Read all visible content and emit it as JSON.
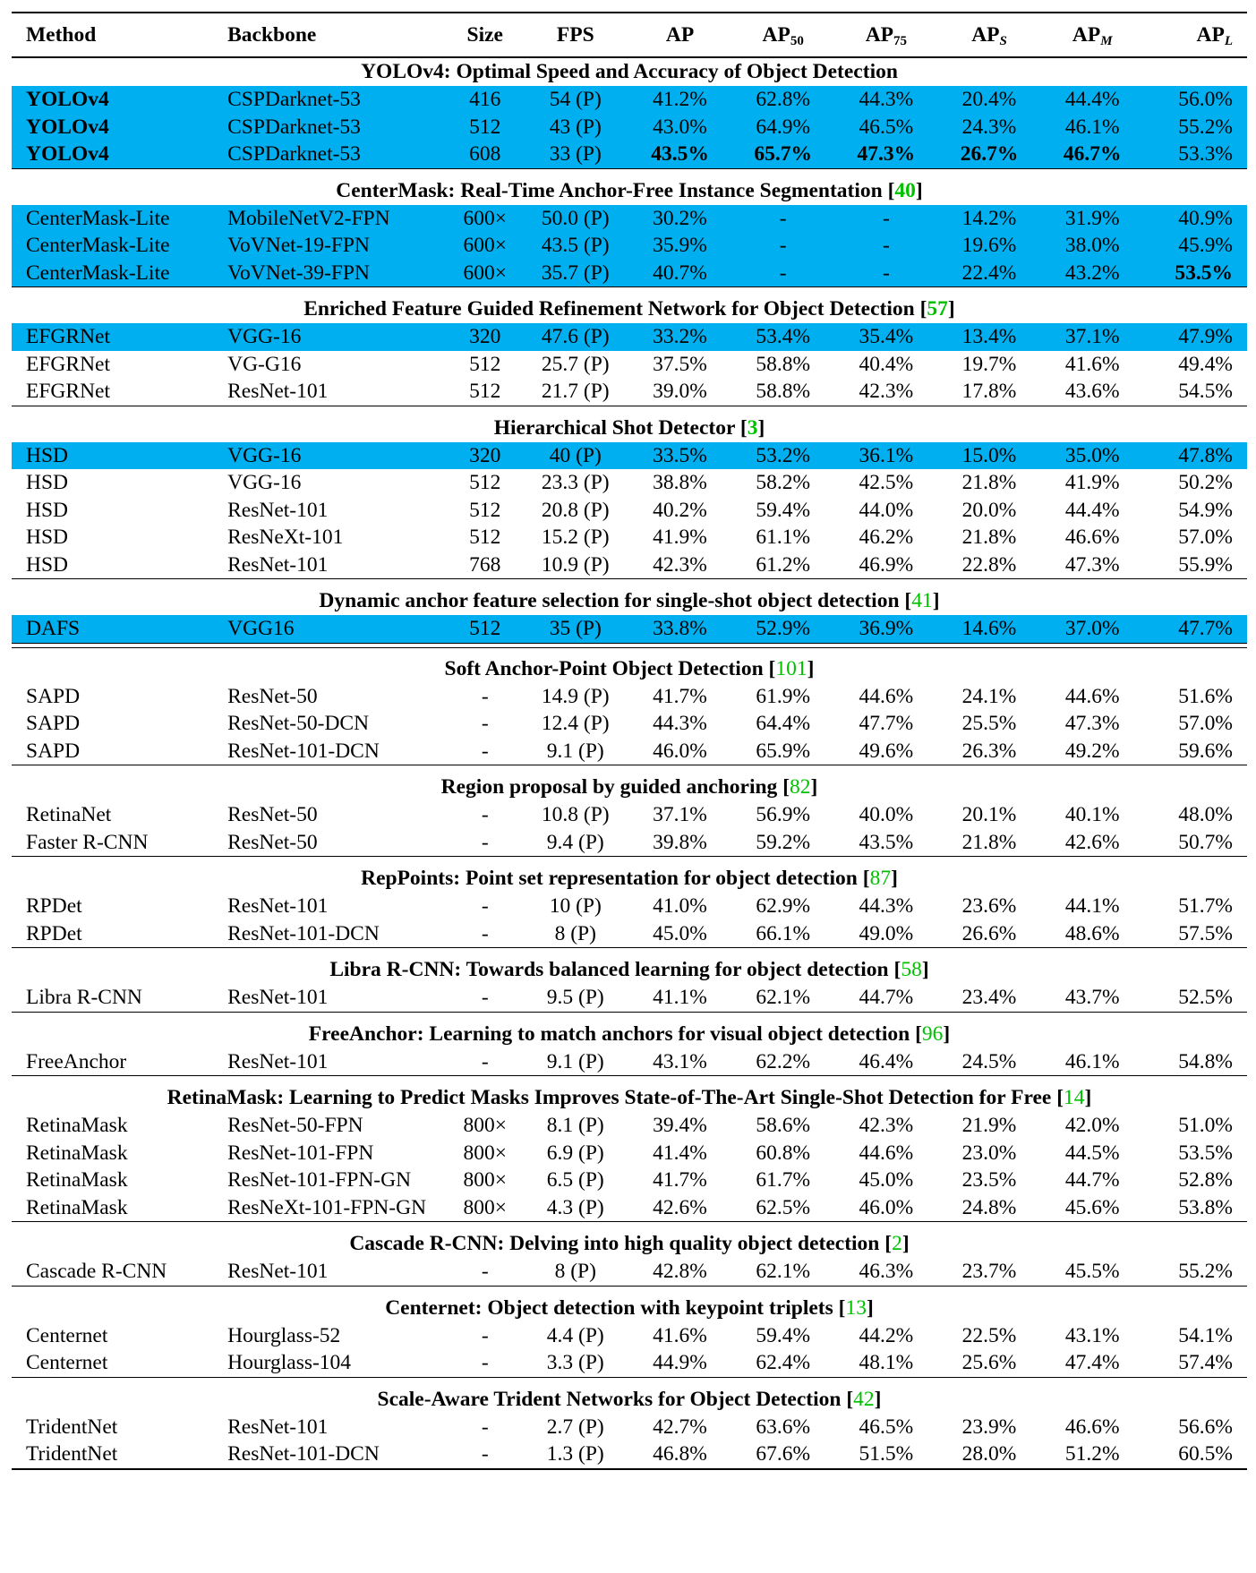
{
  "headers": [
    "Method",
    "Backbone",
    "Size",
    "FPS",
    "AP",
    "AP50",
    "AP75",
    "APS",
    "APM",
    "APL"
  ],
  "header_parts": [
    {
      "base": "Method"
    },
    {
      "base": "Backbone"
    },
    {
      "base": "Size"
    },
    {
      "base": "FPS"
    },
    {
      "base": "AP"
    },
    {
      "base": "AP",
      "sub": "50"
    },
    {
      "base": "AP",
      "sub": "75"
    },
    {
      "base": "AP",
      "sub": "S"
    },
    {
      "base": "AP",
      "sub": "M"
    },
    {
      "base": "AP",
      "sub": "L"
    }
  ],
  "sections": [
    {
      "title": "YOLOv4: Optimal Speed and Accuracy of Object Detection",
      "ref": "",
      "rows": [
        {
          "hl": true,
          "bold_method": true,
          "cells": [
            "YOLOv4",
            "CSPDarknet-53",
            "416",
            "54 (P)",
            "41.2%",
            "62.8%",
            "44.3%",
            "20.4%",
            "44.4%",
            "56.0%"
          ],
          "bold": []
        },
        {
          "hl": true,
          "bold_method": true,
          "cells": [
            "YOLOv4",
            "CSPDarknet-53",
            "512",
            "43 (P)",
            "43.0%",
            "64.9%",
            "46.5%",
            "24.3%",
            "46.1%",
            "55.2%"
          ],
          "bold": []
        },
        {
          "hl": true,
          "bold_method": true,
          "cells": [
            "YOLOv4",
            "CSPDarknet-53",
            "608",
            "33 (P)",
            "43.5%",
            "65.7%",
            "47.3%",
            "26.7%",
            "46.7%",
            "53.3%"
          ],
          "bold": [
            4,
            5,
            6,
            7,
            8
          ]
        }
      ]
    },
    {
      "title": "CenterMask: Real-Time Anchor-Free Instance Segmentation",
      "ref": "40",
      "rows": [
        {
          "hl": true,
          "cells": [
            "CenterMask-Lite",
            "MobileNetV2-FPN",
            "600×",
            "50.0 (P)",
            "30.2%",
            "-",
            "-",
            "14.2%",
            "31.9%",
            "40.9%"
          ],
          "bold": []
        },
        {
          "hl": true,
          "cells": [
            "CenterMask-Lite",
            "VoVNet-19-FPN",
            "600×",
            "43.5 (P)",
            "35.9%",
            "-",
            "-",
            "19.6%",
            "38.0%",
            "45.9%"
          ],
          "bold": []
        },
        {
          "hl": true,
          "cells": [
            "CenterMask-Lite",
            "VoVNet-39-FPN",
            "600×",
            "35.7 (P)",
            "40.7%",
            "-",
            "-",
            "22.4%",
            "43.2%",
            "53.5%"
          ],
          "bold": [
            9
          ]
        }
      ]
    },
    {
      "title": "Enriched Feature Guided Refinement Network for Object Detection",
      "ref": "57",
      "rows": [
        {
          "hl": true,
          "cells": [
            "EFGRNet",
            "VGG-16",
            "320",
            "47.6 (P)",
            "33.2%",
            "53.4%",
            "35.4%",
            "13.4%",
            "37.1%",
            "47.9%"
          ],
          "bold": []
        },
        {
          "hl": false,
          "cells": [
            "EFGRNet",
            "VG-G16",
            "512",
            "25.7 (P)",
            "37.5%",
            "58.8%",
            "40.4%",
            "19.7%",
            "41.6%",
            "49.4%"
          ],
          "bold": []
        },
        {
          "hl": false,
          "cells": [
            "EFGRNet",
            "ResNet-101",
            "512",
            "21.7 (P)",
            "39.0%",
            "58.8%",
            "42.3%",
            "17.8%",
            "43.6%",
            "54.5%"
          ],
          "bold": []
        }
      ]
    },
    {
      "title": "Hierarchical Shot Detector",
      "ref": "3",
      "rows": [
        {
          "hl": true,
          "cells": [
            "HSD",
            "VGG-16",
            "320",
            "40 (P)",
            "33.5%",
            "53.2%",
            "36.1%",
            "15.0%",
            "35.0%",
            "47.8%"
          ],
          "bold": []
        },
        {
          "hl": false,
          "cells": [
            "HSD",
            "VGG-16",
            "512",
            "23.3 (P)",
            "38.8%",
            "58.2%",
            "42.5%",
            "21.8%",
            "41.9%",
            "50.2%"
          ],
          "bold": []
        },
        {
          "hl": false,
          "cells": [
            "HSD",
            "ResNet-101",
            "512",
            "20.8 (P)",
            "40.2%",
            "59.4%",
            "44.0%",
            "20.0%",
            "44.4%",
            "54.9%"
          ],
          "bold": []
        },
        {
          "hl": false,
          "cells": [
            "HSD",
            "ResNeXt-101",
            "512",
            "15.2 (P)",
            "41.9%",
            "61.1%",
            "46.2%",
            "21.8%",
            "46.6%",
            "57.0%"
          ],
          "bold": []
        },
        {
          "hl": false,
          "cells": [
            "HSD",
            "ResNet-101",
            "768",
            "10.9 (P)",
            "42.3%",
            "61.2%",
            "46.9%",
            "22.8%",
            "47.3%",
            "55.9%"
          ],
          "bold": []
        }
      ]
    },
    {
      "title": "Dynamic anchor feature selection for single-shot object detection",
      "ref": "41",
      "double_after": true,
      "rows": [
        {
          "hl": true,
          "cells": [
            "DAFS",
            "VGG16",
            "512",
            "35 (P)",
            "33.8%",
            "52.9%",
            "36.9%",
            "14.6%",
            "37.0%",
            "47.7%"
          ],
          "bold": []
        }
      ]
    },
    {
      "title": "Soft Anchor-Point Object Detection",
      "ref": "101",
      "rows": [
        {
          "hl": false,
          "cells": [
            "SAPD",
            "ResNet-50",
            "-",
            "14.9 (P)",
            "41.7%",
            "61.9%",
            "44.6%",
            "24.1%",
            "44.6%",
            "51.6%"
          ],
          "bold": []
        },
        {
          "hl": false,
          "cells": [
            "SAPD",
            "ResNet-50-DCN",
            "-",
            "12.4 (P)",
            "44.3%",
            "64.4%",
            "47.7%",
            "25.5%",
            "47.3%",
            "57.0%"
          ],
          "bold": []
        },
        {
          "hl": false,
          "cells": [
            "SAPD",
            "ResNet-101-DCN",
            "-",
            "9.1 (P)",
            "46.0%",
            "65.9%",
            "49.6%",
            "26.3%",
            "49.2%",
            "59.6%"
          ],
          "bold": []
        }
      ]
    },
    {
      "title": "Region proposal by guided anchoring",
      "ref": "82",
      "rows": [
        {
          "hl": false,
          "cells": [
            "RetinaNet",
            "ResNet-50",
            "-",
            "10.8 (P)",
            "37.1%",
            "56.9%",
            "40.0%",
            "20.1%",
            "40.1%",
            "48.0%"
          ],
          "bold": []
        },
        {
          "hl": false,
          "cells": [
            "Faster R-CNN",
            "ResNet-50",
            "-",
            "9.4 (P)",
            "39.8%",
            "59.2%",
            "43.5%",
            "21.8%",
            "42.6%",
            "50.7%"
          ],
          "bold": []
        }
      ]
    },
    {
      "title": "RepPoints: Point set representation for object detection",
      "ref": "87",
      "rows": [
        {
          "hl": false,
          "cells": [
            "RPDet",
            "ResNet-101",
            "-",
            "10 (P)",
            "41.0%",
            "62.9%",
            "44.3%",
            "23.6%",
            "44.1%",
            "51.7%"
          ],
          "bold": []
        },
        {
          "hl": false,
          "cells": [
            "RPDet",
            "ResNet-101-DCN",
            "-",
            "8 (P)",
            "45.0%",
            "66.1%",
            "49.0%",
            "26.6%",
            "48.6%",
            "57.5%"
          ],
          "bold": []
        }
      ]
    },
    {
      "title": "Libra R-CNN: Towards balanced learning for object detection",
      "ref": "58",
      "rows": [
        {
          "hl": false,
          "cells": [
            "Libra R-CNN",
            "ResNet-101",
            "-",
            "9.5 (P)",
            "41.1%",
            "62.1%",
            "44.7%",
            "23.4%",
            "43.7%",
            "52.5%"
          ],
          "bold": []
        }
      ]
    },
    {
      "title": "FreeAnchor: Learning to match anchors for visual object detection",
      "ref": "96",
      "rows": [
        {
          "hl": false,
          "cells": [
            "FreeAnchor",
            "ResNet-101",
            "-",
            "9.1 (P)",
            "43.1%",
            "62.2%",
            "46.4%",
            "24.5%",
            "46.1%",
            "54.8%"
          ],
          "bold": []
        }
      ]
    },
    {
      "title": "RetinaMask: Learning to Predict Masks Improves State-of-The-Art Single-Shot Detection for Free",
      "ref": "14",
      "rows": [
        {
          "hl": false,
          "cells": [
            "RetinaMask",
            "ResNet-50-FPN",
            "800×",
            "8.1 (P)",
            "39.4%",
            "58.6%",
            "42.3%",
            "21.9%",
            "42.0%",
            "51.0%"
          ],
          "bold": []
        },
        {
          "hl": false,
          "cells": [
            "RetinaMask",
            "ResNet-101-FPN",
            "800×",
            "6.9 (P)",
            "41.4%",
            "60.8%",
            "44.6%",
            "23.0%",
            "44.5%",
            "53.5%"
          ],
          "bold": []
        },
        {
          "hl": false,
          "cells": [
            "RetinaMask",
            "ResNet-101-FPN-GN",
            "800×",
            "6.5 (P)",
            "41.7%",
            "61.7%",
            "45.0%",
            "23.5%",
            "44.7%",
            "52.8%"
          ],
          "bold": []
        },
        {
          "hl": false,
          "cells": [
            "RetinaMask",
            "ResNeXt-101-FPN-GN",
            "800×",
            "4.3 (P)",
            "42.6%",
            "62.5%",
            "46.0%",
            "24.8%",
            "45.6%",
            "53.8%"
          ],
          "bold": []
        }
      ]
    },
    {
      "title": "Cascade R-CNN: Delving into high quality object detection",
      "ref": "2",
      "rows": [
        {
          "hl": false,
          "cells": [
            "Cascade R-CNN",
            "ResNet-101",
            "-",
            "8 (P)",
            "42.8%",
            "62.1%",
            "46.3%",
            "23.7%",
            "45.5%",
            "55.2%"
          ],
          "bold": []
        }
      ]
    },
    {
      "title": "Centernet: Object detection with keypoint triplets",
      "ref": "13",
      "rows": [
        {
          "hl": false,
          "cells": [
            "Centernet",
            "Hourglass-52",
            "-",
            "4.4 (P)",
            "41.6%",
            "59.4%",
            "44.2%",
            "22.5%",
            "43.1%",
            "54.1%"
          ],
          "bold": []
        },
        {
          "hl": false,
          "cells": [
            "Centernet",
            "Hourglass-104",
            "-",
            "3.3 (P)",
            "44.9%",
            "62.4%",
            "48.1%",
            "25.6%",
            "47.4%",
            "57.4%"
          ],
          "bold": []
        }
      ]
    },
    {
      "title": "Scale-Aware Trident Networks for Object Detection",
      "ref": "42",
      "rows": [
        {
          "hl": false,
          "cells": [
            "TridentNet",
            "ResNet-101",
            "-",
            "2.7 (P)",
            "42.7%",
            "63.6%",
            "46.5%",
            "23.9%",
            "46.6%",
            "56.6%"
          ],
          "bold": []
        },
        {
          "hl": false,
          "cells": [
            "TridentNet",
            "ResNet-101-DCN",
            "-",
            "1.3 (P)",
            "46.8%",
            "67.6%",
            "51.5%",
            "28.0%",
            "51.2%",
            "60.5%"
          ],
          "bold": []
        }
      ]
    }
  ],
  "colors": {
    "highlight": "#00afef",
    "citation": "#00c000"
  }
}
